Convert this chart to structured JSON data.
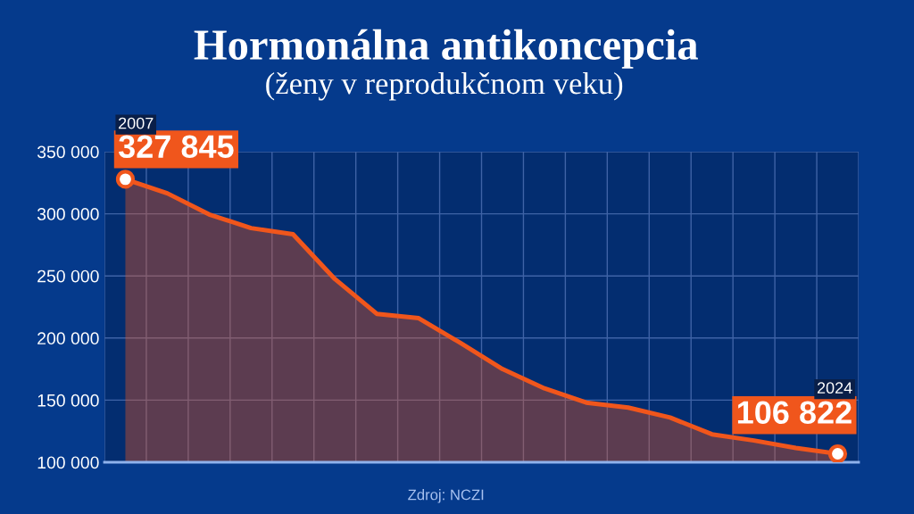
{
  "chart_data": {
    "type": "area",
    "title": "Hormonálna antikoncepcia",
    "subtitle": "(ženy v reprodukčnom veku)",
    "categories": [
      "2007",
      null,
      null,
      null,
      null,
      null,
      null,
      null,
      null,
      null,
      null,
      null,
      null,
      null,
      null,
      null,
      null,
      "2024"
    ],
    "series": [
      {
        "color": "#f0561c",
        "values": [
          327845,
          316500,
          299500,
          288500,
          283500,
          247500,
          219500,
          216000,
          196000,
          175000,
          159500,
          148000,
          144000,
          136000,
          122500,
          117500,
          111500,
          106822
        ],
        "value_labels": [
          "327 845",
          null,
          null,
          null,
          null,
          null,
          null,
          null,
          null,
          null,
          null,
          null,
          null,
          null,
          null,
          null,
          null,
          "106 822"
        ]
      },
      {
        "type": "scatter",
        "color": "#ffffff",
        "marker": "circle",
        "values": [
          327845,
          null,
          null,
          null,
          null,
          null,
          null,
          null,
          null,
          null,
          null,
          null,
          null,
          null,
          null,
          null,
          null,
          106822
        ]
      }
    ],
    "ylim": [
      100000,
      350000
    ],
    "yticks": [
      {
        "value": 100000,
        "label": "100 000"
      },
      {
        "value": 150000,
        "label": "150 000"
      },
      {
        "value": 200000,
        "label": "200 000"
      },
      {
        "value": 250000,
        "label": "250 000"
      },
      {
        "value": 300000,
        "label": "300 000"
      },
      {
        "value": 350000,
        "label": "350 000"
      }
    ],
    "grid": true,
    "annotations": [
      "Zdroj: NCZI"
    ]
  }
}
